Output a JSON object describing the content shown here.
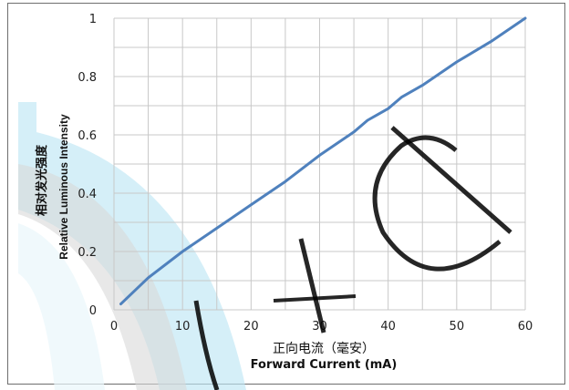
{
  "chart_data": {
    "type": "line",
    "xlabel_cn": "正向电流（毫安）",
    "xlabel": "Forward Current (mA)",
    "ylabel_cn": "相对发光强度",
    "ylabel": "Relative Luminous Intensity",
    "xlim": [
      0,
      60
    ],
    "ylim": [
      0,
      1
    ],
    "x_ticks": [
      "0",
      "10",
      "20",
      "30",
      "40",
      "50",
      "60"
    ],
    "y_ticks": [
      "0",
      "0.2",
      "0.4",
      "0.6",
      "0.8",
      "1"
    ],
    "grid": true,
    "series": [
      {
        "color": "#4f81bd",
        "x": [
          1,
          5,
          10,
          15,
          20,
          25,
          30,
          35,
          37,
          40,
          42,
          45,
          50,
          55,
          60
        ],
        "y": [
          0.02,
          0.11,
          0.2,
          0.28,
          0.36,
          0.44,
          0.53,
          0.61,
          0.65,
          0.69,
          0.73,
          0.77,
          0.85,
          0.92,
          1.0
        ]
      }
    ]
  },
  "watermark": {
    "text": "Ltd",
    "color": "#000000"
  },
  "colors": {
    "gridline": "#c8c8c8",
    "watermark_arc_outer": "#bfe6f4",
    "watermark_arc_inner": "#d9d9d9"
  }
}
